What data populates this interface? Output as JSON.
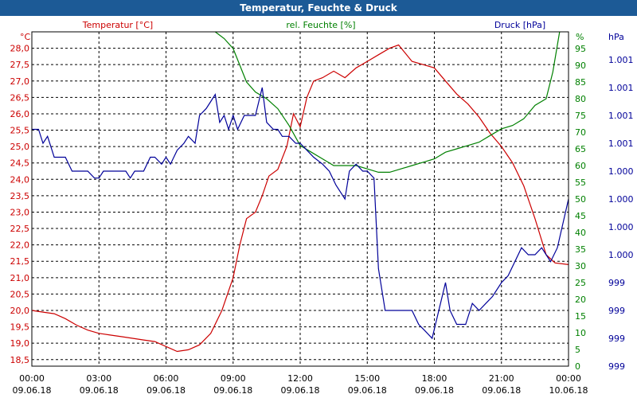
{
  "chart_data": {
    "type": "line",
    "title": "Temperatur, Feuchte & Druck",
    "x_ticks": [
      {
        "time": "00:00",
        "date": "09.06.18"
      },
      {
        "time": "03:00",
        "date": "09.06.18"
      },
      {
        "time": "06:00",
        "date": "09.06.18"
      },
      {
        "time": "09:00",
        "date": "09.06.18"
      },
      {
        "time": "12:00",
        "date": "09.06.18"
      },
      {
        "time": "15:00",
        "date": "09.06.18"
      },
      {
        "time": "18:00",
        "date": "09.06.18"
      },
      {
        "time": "21:00",
        "date": "09.06.18"
      },
      {
        "time": "00:00",
        "date": "10.06.18"
      }
    ],
    "xlim_hours": [
      0,
      24
    ],
    "grid": true,
    "axes": {
      "temperature": {
        "label": "Temperatur [°C]",
        "unit": "°C",
        "ylim": [
          18.3,
          28.5
        ],
        "ticks": [
          "18,5",
          "19,0",
          "19,5",
          "20,0",
          "20,5",
          "21,0",
          "21,5",
          "22,0",
          "22,5",
          "23,0",
          "23,5",
          "24,0",
          "24,5",
          "25,0",
          "25,5",
          "26,0",
          "26,5",
          "27,0",
          "27,5",
          "28,0"
        ],
        "color": "#cc0000"
      },
      "humidity": {
        "label": "rel. Feuchte [%]",
        "unit": "%",
        "ylim": [
          0,
          100
        ],
        "ticks": [
          "0",
          "5",
          "10",
          "15",
          "20",
          "25",
          "30",
          "35",
          "40",
          "45",
          "50",
          "55",
          "60",
          "65",
          "70",
          "75",
          "80",
          "85",
          "90",
          "95"
        ],
        "color": "#008000"
      },
      "pressure": {
        "label": "Druck [hPa]",
        "unit": "hPa",
        "ylim": [
          998.9,
          1001.3
        ],
        "ticks": [
          "999",
          "999",
          "999",
          "999",
          "1.000",
          "1.000",
          "1.000",
          "1.000",
          "1.001",
          "1.001",
          "1.001",
          "1.001"
        ],
        "color": "#000099"
      }
    },
    "series": [
      {
        "name": "Temperatur [°C]",
        "axis": "temperature",
        "color": "#cc0000",
        "points": [
          [
            0,
            20.0
          ],
          [
            0.5,
            19.95
          ],
          [
            1,
            19.9
          ],
          [
            1.5,
            19.75
          ],
          [
            2,
            19.55
          ],
          [
            2.5,
            19.4
          ],
          [
            3,
            19.3
          ],
          [
            3.5,
            19.25
          ],
          [
            4,
            19.2
          ],
          [
            4.5,
            19.15
          ],
          [
            5,
            19.1
          ],
          [
            5.5,
            19.05
          ],
          [
            6,
            18.9
          ],
          [
            6.5,
            18.75
          ],
          [
            7,
            18.8
          ],
          [
            7.5,
            18.95
          ],
          [
            8,
            19.3
          ],
          [
            8.5,
            20.0
          ],
          [
            9,
            21.0
          ],
          [
            9.3,
            22.0
          ],
          [
            9.6,
            22.8
          ],
          [
            10,
            23.0
          ],
          [
            10.3,
            23.5
          ],
          [
            10.6,
            24.1
          ],
          [
            11,
            24.3
          ],
          [
            11.4,
            25.0
          ],
          [
            11.7,
            26.0
          ],
          [
            12,
            25.6
          ],
          [
            12.3,
            26.5
          ],
          [
            12.6,
            27.0
          ],
          [
            13,
            27.1
          ],
          [
            13.5,
            27.3
          ],
          [
            14,
            27.1
          ],
          [
            14.5,
            27.4
          ],
          [
            15,
            27.6
          ],
          [
            15.5,
            27.8
          ],
          [
            16,
            28.0
          ],
          [
            16.4,
            28.1
          ],
          [
            17,
            27.6
          ],
          [
            17.5,
            27.5
          ],
          [
            18,
            27.4
          ],
          [
            18.5,
            27.0
          ],
          [
            19,
            26.6
          ],
          [
            19.5,
            26.3
          ],
          [
            20,
            25.9
          ],
          [
            20.5,
            25.4
          ],
          [
            21,
            25.0
          ],
          [
            21.5,
            24.5
          ],
          [
            22,
            23.8
          ],
          [
            22.5,
            22.8
          ],
          [
            23,
            21.7
          ],
          [
            23.4,
            21.45
          ],
          [
            24,
            21.4
          ]
        ]
      },
      {
        "name": "rel. Feuchte [%]",
        "axis": "humidity",
        "color": "#008000",
        "points": [
          [
            8.2,
            100
          ],
          [
            8.6,
            98
          ],
          [
            9,
            95
          ],
          [
            9.3,
            90
          ],
          [
            9.6,
            85
          ],
          [
            10,
            82
          ],
          [
            10.5,
            80
          ],
          [
            11,
            77
          ],
          [
            11.5,
            72
          ],
          [
            12,
            66
          ],
          [
            12.5,
            64
          ],
          [
            13,
            62
          ],
          [
            13.5,
            60
          ],
          [
            14,
            60
          ],
          [
            14.5,
            60
          ],
          [
            15,
            59
          ],
          [
            15.5,
            58
          ],
          [
            16,
            58
          ],
          [
            16.5,
            59
          ],
          [
            17,
            60
          ],
          [
            17.5,
            61
          ],
          [
            18,
            62
          ],
          [
            18.5,
            64
          ],
          [
            19,
            65
          ],
          [
            19.5,
            66
          ],
          [
            20,
            67
          ],
          [
            20.5,
            69
          ],
          [
            21,
            71
          ],
          [
            21.5,
            72
          ],
          [
            22,
            74
          ],
          [
            22.5,
            78
          ],
          [
            23,
            80
          ],
          [
            23.3,
            88
          ],
          [
            23.6,
            100
          ]
        ]
      },
      {
        "name": "Druck [hPa]",
        "axis": "pressure",
        "color": "#000099",
        "points": [
          [
            0,
            1000.6
          ],
          [
            0.3,
            1000.6
          ],
          [
            0.5,
            1000.5
          ],
          [
            0.7,
            1000.55
          ],
          [
            0.9,
            1000.45
          ],
          [
            1,
            1000.4
          ],
          [
            1.5,
            1000.4
          ],
          [
            1.8,
            1000.3
          ],
          [
            2,
            1000.3
          ],
          [
            2.5,
            1000.3
          ],
          [
            2.8,
            1000.25
          ],
          [
            3,
            1000.25
          ],
          [
            3.2,
            1000.3
          ],
          [
            4,
            1000.3
          ],
          [
            4.2,
            1000.3
          ],
          [
            4.4,
            1000.25
          ],
          [
            4.6,
            1000.3
          ],
          [
            5,
            1000.3
          ],
          [
            5.3,
            1000.4
          ],
          [
            5.5,
            1000.4
          ],
          [
            5.8,
            1000.35
          ],
          [
            6,
            1000.4
          ],
          [
            6.2,
            1000.35
          ],
          [
            6.5,
            1000.45
          ],
          [
            6.8,
            1000.5
          ],
          [
            7,
            1000.55
          ],
          [
            7.3,
            1000.5
          ],
          [
            7.5,
            1000.7
          ],
          [
            7.8,
            1000.75
          ],
          [
            8,
            1000.8
          ],
          [
            8.2,
            1000.85
          ],
          [
            8.4,
            1000.65
          ],
          [
            8.6,
            1000.7
          ],
          [
            8.8,
            1000.6
          ],
          [
            9,
            1000.7
          ],
          [
            9.2,
            1000.6
          ],
          [
            9.5,
            1000.7
          ],
          [
            9.8,
            1000.7
          ],
          [
            10,
            1000.7
          ],
          [
            10.3,
            1000.9
          ],
          [
            10.5,
            1000.65
          ],
          [
            10.8,
            1000.6
          ],
          [
            11,
            1000.6
          ],
          [
            11.2,
            1000.55
          ],
          [
            11.5,
            1000.55
          ],
          [
            11.8,
            1000.5
          ],
          [
            12,
            1000.5
          ],
          [
            12.3,
            1000.45
          ],
          [
            12.6,
            1000.4
          ],
          [
            13,
            1000.35
          ],
          [
            13.3,
            1000.3
          ],
          [
            13.6,
            1000.2
          ],
          [
            14,
            1000.1
          ],
          [
            14.2,
            1000.3
          ],
          [
            14.5,
            1000.35
          ],
          [
            14.8,
            1000.3
          ],
          [
            15,
            1000.3
          ],
          [
            15.3,
            1000.25
          ],
          [
            15.5,
            999.6
          ],
          [
            15.8,
            999.3
          ],
          [
            16,
            999.3
          ],
          [
            16.5,
            999.3
          ],
          [
            17,
            999.3
          ],
          [
            17.3,
            999.2
          ],
          [
            17.6,
            999.15
          ],
          [
            17.9,
            999.1
          ],
          [
            18.2,
            999.3
          ],
          [
            18.5,
            999.5
          ],
          [
            18.7,
            999.3
          ],
          [
            19,
            999.2
          ],
          [
            19.4,
            999.2
          ],
          [
            19.7,
            999.35
          ],
          [
            20,
            999.3
          ],
          [
            20.3,
            999.35
          ],
          [
            20.6,
            999.4
          ],
          [
            21,
            999.5
          ],
          [
            21.3,
            999.55
          ],
          [
            21.6,
            999.65
          ],
          [
            21.9,
            999.75
          ],
          [
            22.2,
            999.7
          ],
          [
            22.5,
            999.7
          ],
          [
            22.8,
            999.75
          ],
          [
            23,
            999.7
          ],
          [
            23.2,
            999.65
          ],
          [
            23.5,
            999.75
          ],
          [
            24,
            1000.1
          ]
        ]
      }
    ]
  }
}
